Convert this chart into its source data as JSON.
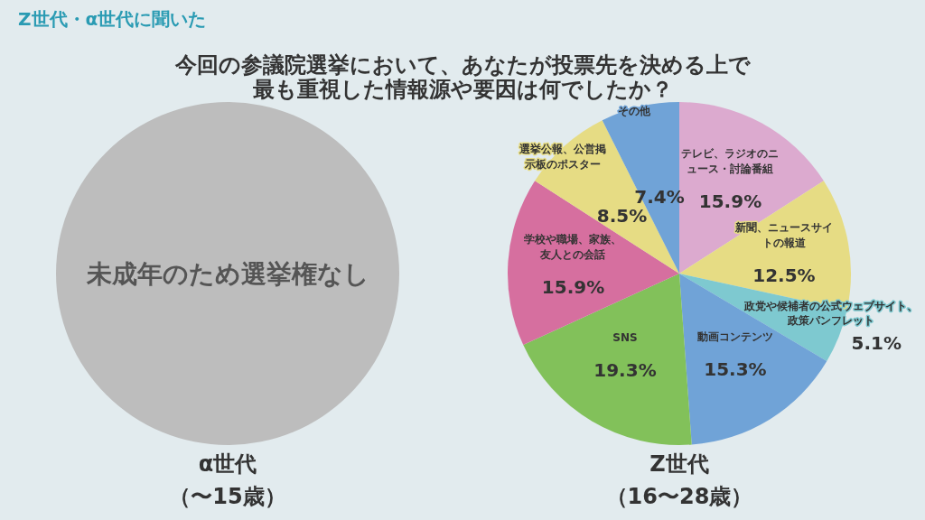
{
  "chart_data": [
    {
      "type": "pie",
      "subtitle": "Z世代・α世代に聞いた",
      "title": "今回の参議院選挙において、あなたが投票先を決める上で最も重視した情報源や要因は何でしたか？",
      "xlabel": "α世代（〜15歳）",
      "categories": [
        "未成年のため選挙権なし"
      ],
      "values": [
        100
      ],
      "colors": [
        "#bdbdbd"
      ]
    },
    {
      "type": "pie",
      "xlabel": "Z世代（16〜28歳）",
      "categories": [
        "テレビ、ラジオのニュース・討論番組",
        "新聞、ニュースサイトの報道",
        "政党や候補者の公式ウェブサイト、政策パンフレット",
        "動画コンテンツ",
        "SNS",
        "学校や職場、家族、友人との会話",
        "選挙公報、公営掲示板のポスター",
        "その他"
      ],
      "values": [
        15.9,
        12.5,
        5.1,
        15.3,
        19.3,
        15.9,
        8.5,
        7.4
      ],
      "value_labels": [
        "15.9%",
        "12.5%",
        "5.1%",
        "15.3%",
        "19.3%",
        "15.9%",
        "8.5%",
        "7.4%"
      ],
      "colors": [
        "#dcaacf",
        "#e6dc84",
        "#7ec9d0",
        "#70a3d7",
        "#82c15a",
        "#d66f9f",
        "#e6dc84",
        "#70a3d7"
      ]
    }
  ]
}
